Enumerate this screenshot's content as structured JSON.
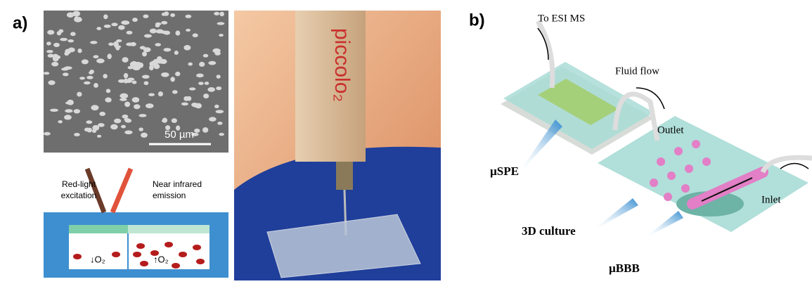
{
  "panel_a": {
    "label": "a)",
    "scale_bar": "50 µm",
    "excitation": [
      "Red-light",
      "excitation"
    ],
    "emission": [
      "Near infrared",
      "emission"
    ],
    "oxygen_left": "↓O₂",
    "oxygen_right": "↑O₂",
    "device_brand": "piccolo₂"
  },
  "panel_b": {
    "label": "b)",
    "to_ms": "To ESI MS",
    "fluid_flow": "Fluid flow",
    "outlet": "Outlet",
    "inlet": "Inlet",
    "spe": "µSPE",
    "culture": "3D culture",
    "bbb": "µBBB"
  }
}
